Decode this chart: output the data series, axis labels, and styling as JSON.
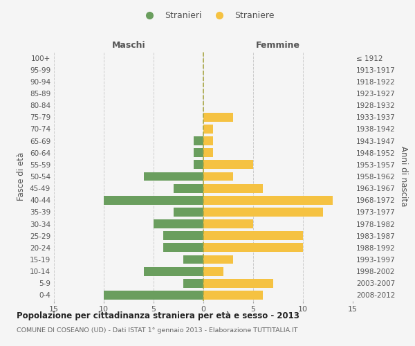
{
  "age_groups": [
    "0-4",
    "5-9",
    "10-14",
    "15-19",
    "20-24",
    "25-29",
    "30-34",
    "35-39",
    "40-44",
    "45-49",
    "50-54",
    "55-59",
    "60-64",
    "65-69",
    "70-74",
    "75-79",
    "80-84",
    "85-89",
    "90-94",
    "95-99",
    "100+"
  ],
  "birth_years": [
    "2008-2012",
    "2003-2007",
    "1998-2002",
    "1993-1997",
    "1988-1992",
    "1983-1987",
    "1978-1982",
    "1973-1977",
    "1968-1972",
    "1963-1967",
    "1958-1962",
    "1953-1957",
    "1948-1952",
    "1943-1947",
    "1938-1942",
    "1933-1937",
    "1928-1932",
    "1923-1927",
    "1918-1922",
    "1913-1917",
    "≤ 1912"
  ],
  "males": [
    10,
    2,
    6,
    2,
    4,
    4,
    5,
    3,
    10,
    3,
    6,
    1,
    1,
    1,
    0,
    0,
    0,
    0,
    0,
    0,
    0
  ],
  "females": [
    6,
    7,
    2,
    3,
    10,
    10,
    5,
    12,
    13,
    6,
    3,
    5,
    1,
    1,
    1,
    3,
    0,
    0,
    0,
    0,
    0
  ],
  "male_color": "#6a9e5e",
  "female_color": "#f5c242",
  "bg_color": "#f5f5f5",
  "grid_color": "#cccccc",
  "title": "Popolazione per cittadinanza straniera per età e sesso - 2013",
  "subtitle": "COMUNE DI COSEANO (UD) - Dati ISTAT 1° gennaio 2013 - Elaborazione TUTTITALIA.IT",
  "ylabel_left": "Fasce di età",
  "ylabel_right": "Anni di nascita",
  "xlim": 15,
  "legend_stranieri": "Stranieri",
  "legend_straniere": "Straniere",
  "maschi_label": "Maschi",
  "femmine_label": "Femmine"
}
